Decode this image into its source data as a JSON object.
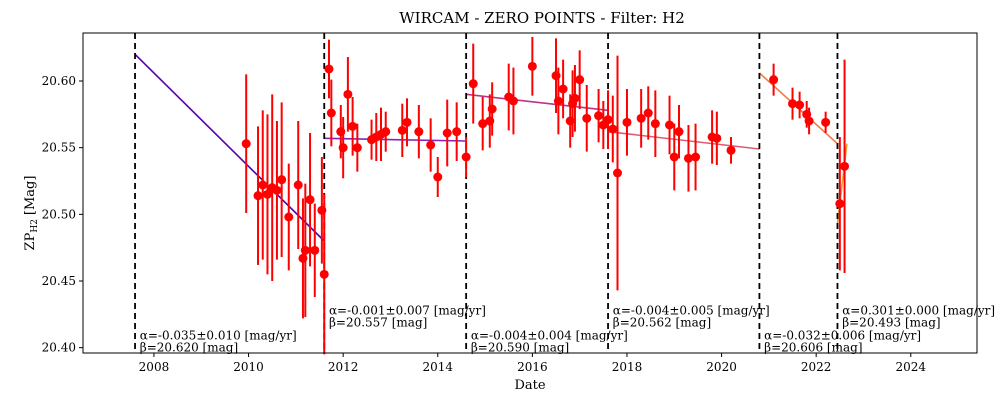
{
  "chart_data": {
    "type": "scatter",
    "title": "WIRCAM - ZERO POINTS - Filter: H2",
    "xlabel": "Date",
    "ylabel_main": "ZP",
    "ylabel_sub": "H2",
    "ylabel_unit": "[Mag]",
    "xlim": [
      2006.5,
      2025.4
    ],
    "ylim": [
      20.396,
      20.636
    ],
    "x_ticks": [
      2008,
      2010,
      2012,
      2014,
      2016,
      2018,
      2020,
      2022,
      2024
    ],
    "y_ticks": [
      20.4,
      20.45,
      20.5,
      20.55,
      20.6
    ],
    "y_tick_labels": [
      "20.40",
      "20.45",
      "20.50",
      "20.55",
      "20.60"
    ],
    "point_color": "#ff0000",
    "errorbar_color": "#ff0000",
    "breaks": [
      2007.6,
      2011.6,
      2014.6,
      2017.6,
      2020.8,
      2022.45
    ],
    "points": [
      {
        "x": 2009.95,
        "y": 20.553,
        "err": 0.052
      },
      {
        "x": 2010.2,
        "y": 20.514,
        "err": 0.052
      },
      {
        "x": 2010.3,
        "y": 20.522,
        "err": 0.056
      },
      {
        "x": 2010.4,
        "y": 20.515,
        "err": 0.06
      },
      {
        "x": 2010.5,
        "y": 20.52,
        "err": 0.07
      },
      {
        "x": 2010.6,
        "y": 20.518,
        "err": 0.052
      },
      {
        "x": 2010.7,
        "y": 20.526,
        "err": 0.058
      },
      {
        "x": 2010.85,
        "y": 20.498,
        "err": 0.04
      },
      {
        "x": 2011.05,
        "y": 20.522,
        "err": 0.048
      },
      {
        "x": 2011.15,
        "y": 20.467,
        "err": 0.045
      },
      {
        "x": 2011.2,
        "y": 20.473,
        "err": 0.05
      },
      {
        "x": 2011.3,
        "y": 20.511,
        "err": 0.05
      },
      {
        "x": 2011.4,
        "y": 20.473,
        "err": 0.035
      },
      {
        "x": 2011.55,
        "y": 20.503,
        "err": 0.04
      },
      {
        "x": 2011.6,
        "y": 20.455,
        "err": 0.06
      },
      {
        "x": 2011.7,
        "y": 20.609,
        "err": 0.022
      },
      {
        "x": 2011.75,
        "y": 20.576,
        "err": 0.025
      },
      {
        "x": 2011.95,
        "y": 20.562,
        "err": 0.02
      },
      {
        "x": 2012.0,
        "y": 20.55,
        "err": 0.023
      },
      {
        "x": 2012.1,
        "y": 20.59,
        "err": 0.028
      },
      {
        "x": 2012.2,
        "y": 20.566,
        "err": 0.022
      },
      {
        "x": 2012.3,
        "y": 20.55,
        "err": 0.018
      },
      {
        "x": 2012.6,
        "y": 20.556,
        "err": 0.015
      },
      {
        "x": 2012.7,
        "y": 20.558,
        "err": 0.018
      },
      {
        "x": 2012.8,
        "y": 20.56,
        "err": 0.02
      },
      {
        "x": 2012.9,
        "y": 20.562,
        "err": 0.015
      },
      {
        "x": 2013.25,
        "y": 20.563,
        "err": 0.02
      },
      {
        "x": 2013.35,
        "y": 20.569,
        "err": 0.018
      },
      {
        "x": 2013.6,
        "y": 20.562,
        "err": 0.02
      },
      {
        "x": 2013.85,
        "y": 20.552,
        "err": 0.02
      },
      {
        "x": 2014.0,
        "y": 20.528,
        "err": 0.015
      },
      {
        "x": 2014.2,
        "y": 20.561,
        "err": 0.025
      },
      {
        "x": 2014.4,
        "y": 20.562,
        "err": 0.022
      },
      {
        "x": 2014.6,
        "y": 20.543,
        "err": 0.015
      },
      {
        "x": 2014.75,
        "y": 20.598,
        "err": 0.03
      },
      {
        "x": 2014.95,
        "y": 20.568,
        "err": 0.02
      },
      {
        "x": 2015.1,
        "y": 20.57,
        "err": 0.02
      },
      {
        "x": 2015.15,
        "y": 20.579,
        "err": 0.02
      },
      {
        "x": 2015.5,
        "y": 20.588,
        "err": 0.025
      },
      {
        "x": 2015.6,
        "y": 20.585,
        "err": 0.025
      },
      {
        "x": 2016.0,
        "y": 20.611,
        "err": 0.022
      },
      {
        "x": 2016.5,
        "y": 20.604,
        "err": 0.028
      },
      {
        "x": 2016.55,
        "y": 20.585,
        "err": 0.025
      },
      {
        "x": 2016.65,
        "y": 20.594,
        "err": 0.022
      },
      {
        "x": 2016.8,
        "y": 20.57,
        "err": 0.02
      },
      {
        "x": 2016.85,
        "y": 20.583,
        "err": 0.025
      },
      {
        "x": 2016.9,
        "y": 20.587,
        "err": 0.025
      },
      {
        "x": 2017.0,
        "y": 20.601,
        "err": 0.022
      },
      {
        "x": 2017.15,
        "y": 20.572,
        "err": 0.025
      },
      {
        "x": 2017.4,
        "y": 20.574,
        "err": 0.02
      },
      {
        "x": 2017.5,
        "y": 20.567,
        "err": 0.018
      },
      {
        "x": 2017.6,
        "y": 20.571,
        "err": 0.022
      },
      {
        "x": 2017.7,
        "y": 20.564,
        "err": 0.025
      },
      {
        "x": 2017.8,
        "y": 20.531,
        "err": 0.088
      },
      {
        "x": 2018.0,
        "y": 20.569,
        "err": 0.025
      },
      {
        "x": 2018.3,
        "y": 20.572,
        "err": 0.022
      },
      {
        "x": 2018.45,
        "y": 20.576,
        "err": 0.02
      },
      {
        "x": 2018.6,
        "y": 20.568,
        "err": 0.025
      },
      {
        "x": 2018.9,
        "y": 20.567,
        "err": 0.022
      },
      {
        "x": 2019.0,
        "y": 20.543,
        "err": 0.025
      },
      {
        "x": 2019.1,
        "y": 20.562,
        "err": 0.02
      },
      {
        "x": 2019.3,
        "y": 20.542,
        "err": 0.025
      },
      {
        "x": 2019.45,
        "y": 20.543,
        "err": 0.025
      },
      {
        "x": 2019.8,
        "y": 20.558,
        "err": 0.02
      },
      {
        "x": 2019.9,
        "y": 20.557,
        "err": 0.02
      },
      {
        "x": 2020.2,
        "y": 20.548,
        "err": 0.01
      },
      {
        "x": 2021.1,
        "y": 20.601,
        "err": 0.012
      },
      {
        "x": 2021.5,
        "y": 20.583,
        "err": 0.012
      },
      {
        "x": 2021.65,
        "y": 20.582,
        "err": 0.01
      },
      {
        "x": 2021.8,
        "y": 20.575,
        "err": 0.01
      },
      {
        "x": 2021.85,
        "y": 20.57,
        "err": 0.01
      },
      {
        "x": 2022.2,
        "y": 20.569,
        "err": 0.008
      },
      {
        "x": 2022.5,
        "y": 20.508,
        "err": 0.05
      },
      {
        "x": 2022.6,
        "y": 20.536,
        "err": 0.08
      }
    ],
    "fits": [
      {
        "x1": 2007.6,
        "y1": 20.62,
        "x2": 2011.6,
        "y2": 20.48,
        "color": "#5500aa",
        "label_alpha": "α=-0.035±0.010 [mag/yr]",
        "label_beta": "β=20.620 [mag]",
        "label_x": 2007.7,
        "label_y_alpha": 20.406,
        "label_y_beta": 20.397
      },
      {
        "x1": 2011.6,
        "y1": 20.557,
        "x2": 2014.6,
        "y2": 20.555,
        "color": "#8822bb",
        "label_alpha": "α=-0.001±0.007 [mag/yr]",
        "label_beta": "β=20.557 [mag]",
        "label_x": 2011.7,
        "label_y_alpha": 20.425,
        "label_y_beta": 20.416
      },
      {
        "x1": 2014.6,
        "y1": 20.59,
        "x2": 2017.6,
        "y2": 20.578,
        "color": "#bb3388",
        "label_alpha": "α=-0.004±0.004 [mag/yr]",
        "label_beta": "β=20.590 [mag]",
        "label_x": 2014.7,
        "label_y_alpha": 20.406,
        "label_y_beta": 20.397
      },
      {
        "x1": 2017.6,
        "y1": 20.562,
        "x2": 2020.8,
        "y2": 20.549,
        "color": "#e05a70",
        "label_alpha": "α=-0.004±0.005 [mag/yr]",
        "label_beta": "β=20.562 [mag]",
        "label_x": 2017.7,
        "label_y_alpha": 20.425,
        "label_y_beta": 20.416
      },
      {
        "x1": 2020.8,
        "y1": 20.606,
        "x2": 2022.45,
        "y2": 20.553,
        "color": "#f07a40",
        "label_alpha": "α=-0.032±0.006 [mag/yr]",
        "label_beta": "β=20.606 [mag]",
        "label_x": 2020.9,
        "label_y_alpha": 20.406,
        "label_y_beta": 20.397
      },
      {
        "x1": 2022.45,
        "y1": 20.493,
        "x2": 2022.65,
        "y2": 20.553,
        "color": "#f0a030",
        "label_alpha": "α=0.301±0.000 [mag/yr]",
        "label_beta": "β=20.493 [mag]",
        "label_x": 2022.55,
        "label_y_alpha": 20.425,
        "label_y_beta": 20.416
      }
    ]
  }
}
